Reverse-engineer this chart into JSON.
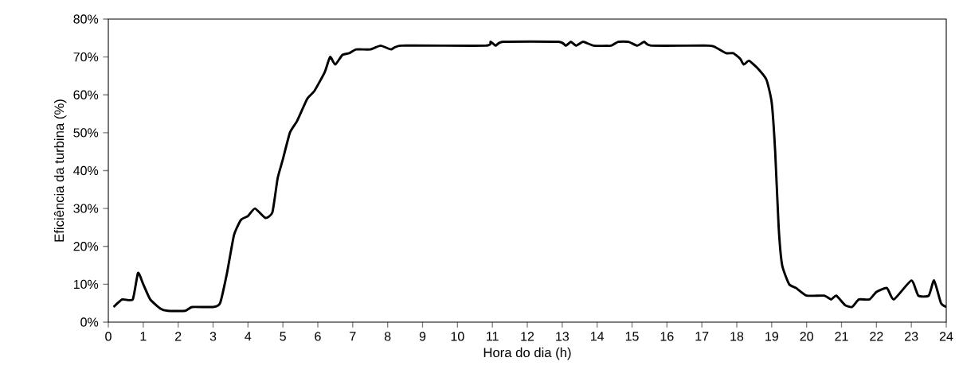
{
  "chart_data": {
    "type": "line",
    "xlabel": "Hora do dia (h)",
    "ylabel": "Eficiência da turbina (%)",
    "x": [
      0.15,
      0.4,
      0.7,
      0.85,
      1.0,
      1.2,
      1.5,
      1.7,
      2.2,
      2.4,
      3.0,
      3.2,
      3.4,
      3.6,
      3.8,
      4.0,
      4.2,
      4.5,
      4.7,
      4.85,
      5.0,
      5.2,
      5.4,
      5.7,
      5.9,
      6.2,
      6.35,
      6.5,
      6.7,
      6.9,
      7.1,
      7.5,
      7.8,
      8.1,
      8.4,
      10.8,
      10.95,
      11.1,
      11.3,
      12.9,
      13.1,
      13.25,
      13.4,
      13.6,
      13.9,
      14.4,
      14.6,
      14.9,
      15.15,
      15.35,
      15.55,
      17.2,
      17.4,
      17.7,
      17.9,
      18.1,
      18.2,
      18.35,
      18.6,
      18.85,
      19.0,
      19.1,
      19.2,
      19.3,
      19.5,
      19.7,
      20.0,
      20.5,
      20.7,
      20.85,
      21.1,
      21.3,
      21.5,
      21.8,
      22.0,
      22.3,
      22.5,
      23.0,
      23.2,
      23.5,
      23.65,
      23.85,
      24.0
    ],
    "values": [
      4,
      6,
      6,
      13,
      10,
      6,
      3.5,
      3,
      3,
      4,
      4,
      5,
      13,
      23,
      27,
      28,
      30,
      27.5,
      29,
      38,
      43,
      50,
      53,
      59,
      61,
      66,
      70,
      68,
      70.5,
      71,
      72,
      72,
      73,
      72,
      73,
      73,
      74,
      73,
      74,
      74,
      73,
      74,
      73,
      74,
      73,
      73,
      74,
      74,
      73,
      74,
      73,
      73,
      72.5,
      71,
      71,
      69.5,
      68,
      69,
      67,
      64,
      58,
      45,
      25,
      15,
      10,
      9,
      7,
      7,
      6,
      7,
      4.5,
      4,
      6,
      6,
      8,
      9,
      6,
      11,
      7,
      7,
      11,
      5,
      4
    ],
    "color": "#000000",
    "line_style": "solid",
    "marker": "none",
    "grid": false,
    "xlim": [
      0,
      24
    ],
    "xticks": [
      0,
      1,
      2,
      3,
      4,
      5,
      6,
      7,
      8,
      9,
      10,
      11,
      12,
      13,
      14,
      15,
      16,
      17,
      18,
      19,
      20,
      21,
      22,
      23,
      24
    ],
    "ylim": [
      0,
      80
    ],
    "yticks": [
      {
        "value": 0,
        "label": "0%"
      },
      {
        "value": 10,
        "label": "10%"
      },
      {
        "value": 20,
        "label": "20%"
      },
      {
        "value": 30,
        "label": "30%"
      },
      {
        "value": 40,
        "label": "40%"
      },
      {
        "value": 50,
        "label": "50%"
      },
      {
        "value": 60,
        "label": "60%"
      },
      {
        "value": 70,
        "label": "70%"
      },
      {
        "value": 80,
        "label": "80%"
      }
    ]
  }
}
